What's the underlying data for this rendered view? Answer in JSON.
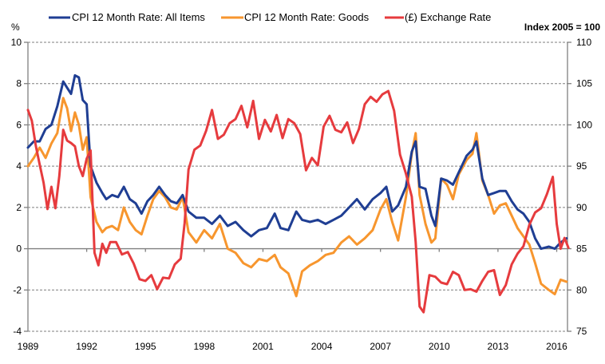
{
  "chart_data": {
    "type": "line",
    "title": "",
    "xlabel": "",
    "ylabel": "%",
    "y2label": "Index 2005 = 100",
    "ylim": [
      -4,
      10
    ],
    "y2lim": [
      75,
      110
    ],
    "xlim": [
      1989,
      2016.6
    ],
    "yticks": [
      "10",
      "8",
      "6",
      "4",
      "2",
      "0",
      "-2",
      "-4"
    ],
    "yticks_values": [
      10,
      8,
      6,
      4,
      2,
      0,
      -2,
      -4
    ],
    "y2ticks": [
      "110",
      "105",
      "100",
      "95",
      "90",
      "85",
      "80",
      "75"
    ],
    "y2ticks_values": [
      110,
      105,
      100,
      95,
      90,
      85,
      80,
      75
    ],
    "xticks": [
      "1989",
      "1992",
      "1995",
      "1998",
      "2001",
      "2004",
      "2007",
      "2010",
      "2013",
      "2016"
    ],
    "xticks_values": [
      1989,
      1992,
      1995,
      1998,
      2001,
      2004,
      2007,
      2010,
      2013,
      2016
    ],
    "grid": true,
    "legend_position": "top",
    "series": [
      {
        "name": "CPI 12 Month Rate:  All Items",
        "axis": "left",
        "color": "#1f3e93",
        "x": [
          1989.0,
          1989.3,
          1989.6,
          1989.9,
          1990.2,
          1990.5,
          1990.8,
          1991.0,
          1991.2,
          1991.4,
          1991.6,
          1991.8,
          1992.0,
          1992.2,
          1992.5,
          1992.8,
          1993.0,
          1993.3,
          1993.6,
          1993.9,
          1994.2,
          1994.5,
          1994.8,
          1995.1,
          1995.4,
          1995.7,
          1996.0,
          1996.3,
          1996.6,
          1996.9,
          1997.2,
          1997.6,
          1998.0,
          1998.4,
          1998.8,
          1999.2,
          1999.6,
          2000.0,
          2000.4,
          2000.8,
          2001.2,
          2001.6,
          2001.9,
          2002.3,
          2002.7,
          2003.0,
          2003.4,
          2003.8,
          2004.2,
          2004.6,
          2005.0,
          2005.4,
          2005.8,
          2006.2,
          2006.6,
          2007.0,
          2007.3,
          2007.6,
          2007.9,
          2008.3,
          2008.6,
          2008.8,
          2009.0,
          2009.3,
          2009.6,
          2009.8,
          2010.1,
          2010.4,
          2010.7,
          2011.0,
          2011.4,
          2011.7,
          2011.9,
          2012.2,
          2012.5,
          2012.8,
          2013.1,
          2013.4,
          2013.7,
          2014.0,
          2014.3,
          2014.6,
          2014.9,
          2015.2,
          2015.6,
          2015.9,
          2016.2,
          2016.5
        ],
        "values": [
          4.9,
          5.2,
          5.2,
          5.8,
          6.0,
          6.9,
          8.1,
          7.8,
          7.5,
          8.4,
          8.3,
          7.2,
          7.0,
          4.0,
          3.2,
          2.7,
          2.4,
          2.6,
          2.5,
          3.0,
          2.4,
          2.2,
          1.7,
          2.3,
          2.6,
          3.0,
          2.6,
          2.3,
          2.2,
          2.6,
          1.8,
          1.5,
          1.5,
          1.2,
          1.6,
          1.1,
          1.3,
          0.9,
          0.6,
          0.9,
          1.0,
          1.7,
          1.0,
          0.9,
          1.8,
          1.4,
          1.3,
          1.4,
          1.2,
          1.4,
          1.6,
          2.0,
          2.4,
          1.9,
          2.4,
          2.7,
          3.0,
          1.8,
          2.1,
          3.0,
          4.7,
          5.2,
          3.0,
          2.9,
          1.6,
          1.1,
          3.4,
          3.3,
          3.1,
          3.7,
          4.5,
          4.8,
          5.2,
          3.4,
          2.6,
          2.7,
          2.8,
          2.8,
          2.3,
          1.9,
          1.7,
          1.3,
          0.5,
          0.0,
          0.1,
          0.0,
          0.3,
          0.5
        ]
      },
      {
        "name": "CPI 12 Month Rate:  Goods",
        "axis": "left",
        "color": "#f7962e",
        "x": [
          1989.0,
          1989.3,
          1989.6,
          1989.9,
          1990.2,
          1990.5,
          1990.8,
          1991.0,
          1991.2,
          1991.4,
          1991.6,
          1991.8,
          1992.0,
          1992.2,
          1992.5,
          1992.8,
          1993.0,
          1993.3,
          1993.6,
          1993.9,
          1994.2,
          1994.5,
          1994.8,
          1995.1,
          1995.4,
          1995.7,
          1996.0,
          1996.3,
          1996.6,
          1996.9,
          1997.2,
          1997.6,
          1998.0,
          1998.4,
          1998.8,
          1999.2,
          1999.6,
          2000.0,
          2000.4,
          2000.8,
          2001.2,
          2001.6,
          2001.9,
          2002.3,
          2002.7,
          2003.0,
          2003.4,
          2003.8,
          2004.2,
          2004.6,
          2005.0,
          2005.4,
          2005.8,
          2006.2,
          2006.6,
          2007.0,
          2007.3,
          2007.6,
          2007.9,
          2008.3,
          2008.6,
          2008.8,
          2009.0,
          2009.3,
          2009.6,
          2009.8,
          2010.1,
          2010.4,
          2010.7,
          2011.0,
          2011.4,
          2011.7,
          2011.9,
          2012.2,
          2012.5,
          2012.8,
          2013.1,
          2013.4,
          2013.7,
          2014.0,
          2014.3,
          2014.6,
          2014.9,
          2015.2,
          2015.6,
          2015.9,
          2016.2,
          2016.5
        ],
        "values": [
          4.0,
          4.4,
          4.9,
          4.4,
          5.1,
          5.6,
          7.3,
          6.8,
          5.7,
          6.6,
          6.0,
          4.8,
          5.4,
          2.5,
          1.3,
          0.8,
          1.0,
          1.1,
          0.9,
          2.0,
          1.3,
          0.9,
          0.7,
          1.6,
          2.4,
          2.8,
          2.5,
          2.0,
          1.9,
          2.5,
          0.8,
          0.3,
          0.9,
          0.5,
          1.2,
          0.0,
          -0.2,
          -0.7,
          -0.9,
          -0.5,
          -0.6,
          -0.3,
          -0.9,
          -1.2,
          -2.3,
          -1.1,
          -0.8,
          -0.6,
          -0.3,
          -0.2,
          0.3,
          0.6,
          0.2,
          0.5,
          0.9,
          1.9,
          2.4,
          1.3,
          0.4,
          2.5,
          4.6,
          5.6,
          2.6,
          1.2,
          0.3,
          0.5,
          3.4,
          3.1,
          2.4,
          3.6,
          4.3,
          4.6,
          5.6,
          3.3,
          2.6,
          1.7,
          2.1,
          2.2,
          1.6,
          1.0,
          0.6,
          0.2,
          -0.7,
          -1.7,
          -2.0,
          -2.2,
          -1.5,
          -1.6
        ]
      },
      {
        "name": "(£) Exchange Rate",
        "axis": "right",
        "color": "#e63b3e",
        "x": [
          1989.0,
          1989.2,
          1989.4,
          1989.6,
          1989.8,
          1990.0,
          1990.2,
          1990.4,
          1990.6,
          1990.8,
          1991.0,
          1991.2,
          1991.4,
          1991.6,
          1991.8,
          1992.0,
          1992.2,
          1992.4,
          1992.6,
          1992.8,
          1993.0,
          1993.2,
          1993.5,
          1993.8,
          1994.1,
          1994.4,
          1994.7,
          1995.0,
          1995.3,
          1995.6,
          1995.9,
          1996.2,
          1996.5,
          1996.8,
          1997.0,
          1997.2,
          1997.5,
          1997.8,
          1998.1,
          1998.4,
          1998.7,
          1999.0,
          1999.3,
          1999.6,
          1999.9,
          2000.2,
          2000.5,
          2000.8,
          2001.1,
          2001.4,
          2001.7,
          2002.0,
          2002.3,
          2002.6,
          2002.9,
          2003.2,
          2003.5,
          2003.8,
          2004.1,
          2004.4,
          2004.7,
          2005.0,
          2005.3,
          2005.6,
          2005.9,
          2006.2,
          2006.5,
          2006.8,
          2007.1,
          2007.4,
          2007.7,
          2008.0,
          2008.3,
          2008.6,
          2008.8,
          2009.0,
          2009.2,
          2009.5,
          2009.8,
          2010.1,
          2010.4,
          2010.7,
          2011.0,
          2011.3,
          2011.6,
          2011.9,
          2012.2,
          2012.5,
          2012.8,
          2013.1,
          2013.4,
          2013.7,
          2014.0,
          2014.3,
          2014.6,
          2014.9,
          2015.2,
          2015.5,
          2015.8,
          2016.0,
          2016.2,
          2016.4,
          2016.6
        ],
        "values": [
          101.8,
          100.5,
          97.5,
          95.2,
          93.0,
          89.8,
          92.5,
          89.9,
          93.8,
          99.4,
          98.1,
          97.8,
          97.4,
          95.0,
          93.8,
          95.9,
          96.9,
          84.5,
          83.0,
          85.6,
          84.5,
          85.8,
          85.8,
          84.3,
          84.6,
          83.2,
          81.3,
          81.1,
          81.8,
          80.1,
          81.5,
          81.4,
          83.1,
          83.8,
          88.1,
          94.6,
          97.0,
          97.5,
          99.3,
          101.8,
          98.3,
          98.8,
          100.2,
          100.7,
          102.3,
          99.7,
          102.9,
          98.3,
          100.6,
          99.2,
          101.2,
          98.4,
          100.7,
          100.2,
          98.9,
          94.5,
          96.0,
          95.1,
          99.8,
          101.1,
          99.4,
          99.1,
          100.3,
          97.8,
          99.5,
          102.5,
          103.4,
          102.8,
          103.7,
          104.1,
          101.7,
          96.4,
          94.1,
          91.3,
          85.8,
          78.0,
          77.3,
          81.8,
          81.6,
          80.9,
          80.7,
          82.2,
          81.8,
          80.0,
          80.1,
          79.8,
          81.1,
          82.2,
          82.4,
          79.4,
          80.6,
          83.1,
          84.4,
          85.3,
          87.9,
          89.4,
          89.9,
          91.6,
          93.7,
          88.0,
          85.0,
          86.3,
          85.1
        ]
      }
    ]
  }
}
